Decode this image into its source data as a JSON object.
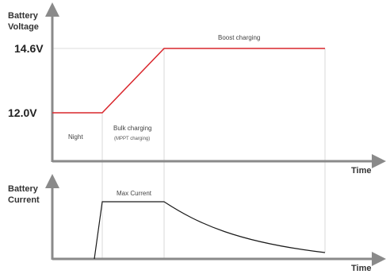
{
  "voltage_chart": {
    "y_title_line1": "Battery",
    "y_title_line2": "Voltage",
    "x_title": "Time",
    "level_high": "14.6V",
    "level_low": "12.0V",
    "phase_night": "Night",
    "phase_bulk": "Bulk charging",
    "phase_bulk_note": "(MPPT charging)",
    "phase_boost": "Boost charging",
    "line_color": "#d9262c"
  },
  "current_chart": {
    "y_title_line1": "Battery",
    "y_title_line2": "Current",
    "x_title": "Time",
    "label_max": "Max Current",
    "line_color": "#1a1a1a"
  }
}
